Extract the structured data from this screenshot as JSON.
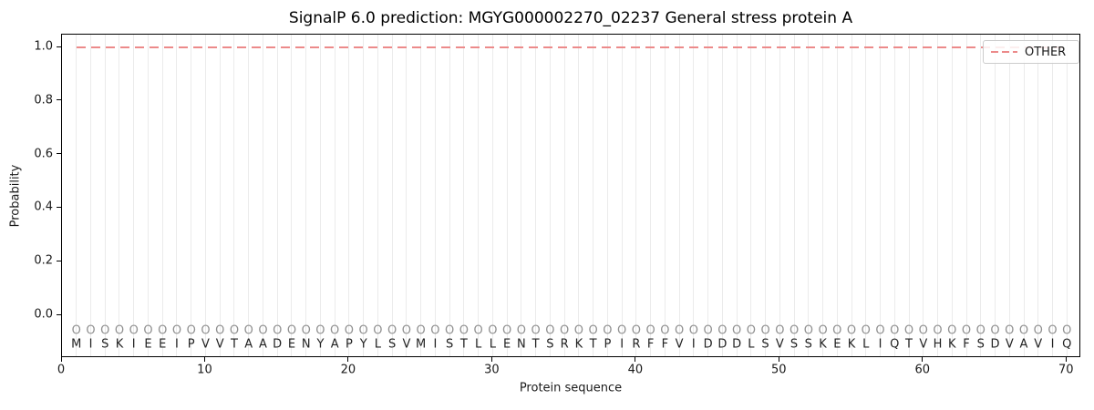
{
  "chart_data": {
    "type": "line",
    "title": "SignalP 6.0 prediction: MGYG000002270_02237 General stress protein A",
    "xlabel": "Protein sequence",
    "ylabel": "Probability",
    "xlim": [
      0,
      71
    ],
    "ylim": [
      -0.16,
      1.05
    ],
    "x_ticks": [
      0,
      10,
      20,
      30,
      40,
      50,
      60,
      70
    ],
    "y_ticks": [
      "0.0",
      "0.2",
      "0.4",
      "0.6",
      "0.8",
      "1.0"
    ],
    "grid": "vertical gridline at every residue position 1-70",
    "legend_position": "upper right",
    "series": [
      {
        "name": "OTHER",
        "style": "dashed",
        "color": "#ec8a8a",
        "x_start": 1,
        "x_end": 70,
        "y_value": 1.0,
        "description": "constant probability 1.0 across all 70 positions"
      }
    ],
    "sequence": "MISKIEEIPVVTAADENYAPYLSVMISTLLENTSRKTPIRFFVIDDDLSVSSKEKLIQTVHKFSDVAVIQ",
    "position_marker": "O"
  },
  "colors": {
    "other_line": "#ec8a8a",
    "gridline": "#ebebeb",
    "position_marker": "#909090",
    "sequence_letter": "#222222",
    "frame": "#000000",
    "legend_border": "#cccccc"
  }
}
